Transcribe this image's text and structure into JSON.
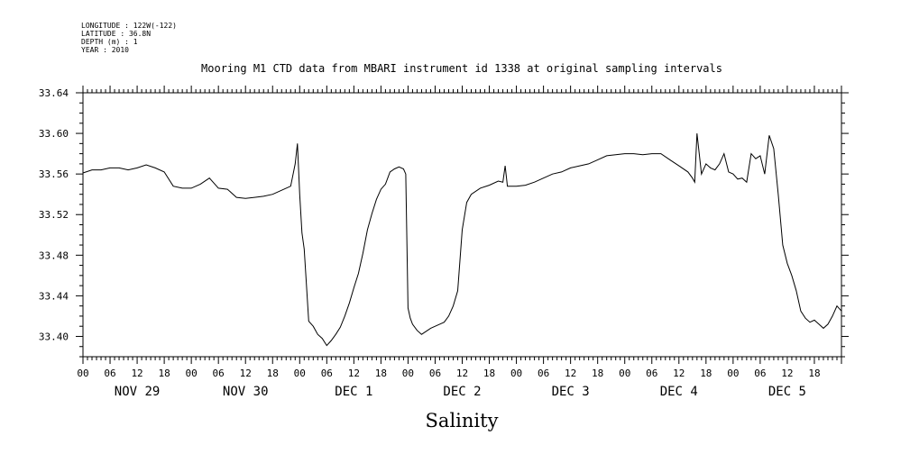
{
  "meta": {
    "longitude": "LONGITUDE : 122W(-122)",
    "latitude": "LATITUDE : 36.8N",
    "depth": "DEPTH (m) : 1",
    "year": "YEAR : 2010"
  },
  "chart_data": {
    "type": "line",
    "title": "Mooring M1 CTD data from MBARI instrument id 1338 at original sampling intervals",
    "xlabel": "Salinity",
    "ylabel": "",
    "xlim_hours": [
      0,
      168
    ],
    "ylim": [
      33.38,
      33.64
    ],
    "yticks": [
      33.4,
      33.44,
      33.48,
      33.52,
      33.56,
      33.6,
      33.64
    ],
    "ytick_labels": [
      "33.40",
      "33.44",
      "33.48",
      "33.52",
      "33.56",
      "33.60",
      "33.64"
    ],
    "xtick_hours": [
      "00",
      "06",
      "12",
      "18",
      "00",
      "06",
      "12",
      "18",
      "00",
      "06",
      "12",
      "18",
      "00",
      "06",
      "12",
      "18",
      "00",
      "06",
      "12",
      "18",
      "00",
      "06",
      "12",
      "18",
      "00",
      "06",
      "12",
      "18"
    ],
    "day_labels": [
      "NOV 29",
      "NOV 30",
      "DEC  1",
      "DEC  2",
      "DEC  3",
      "DEC  4",
      "DEC  5"
    ],
    "grid": false,
    "series": [
      {
        "x": [
          0,
          2,
          4,
          6,
          8,
          10,
          12,
          14,
          16,
          18,
          20,
          22,
          24,
          26,
          28,
          30,
          32,
          34,
          36,
          38,
          40,
          42,
          44,
          46,
          47,
          47.5,
          48,
          48.5,
          49,
          50,
          51,
          52,
          53,
          54,
          55,
          56,
          57,
          58,
          59,
          60,
          61,
          62,
          63,
          64,
          65,
          66,
          67,
          68,
          69,
          70,
          71,
          71.5,
          72,
          72.5,
          73,
          74,
          75,
          76,
          77,
          78,
          79,
          80,
          81,
          82,
          83,
          84,
          85,
          86,
          88,
          90,
          92,
          93,
          93.5,
          94,
          96,
          98,
          100,
          102,
          104,
          106,
          108,
          110,
          112,
          114,
          116,
          118,
          120,
          122,
          124,
          126,
          128,
          130,
          132,
          134,
          135,
          135.5,
          136,
          137,
          138,
          139,
          140,
          141,
          142,
          143,
          144,
          145,
          146,
          147,
          148,
          149,
          150,
          151,
          152,
          153,
          154,
          155,
          156,
          157,
          158,
          159,
          160,
          161,
          162,
          163,
          164,
          165,
          166,
          167,
          168
        ],
        "y": [
          33.561,
          33.564,
          33.564,
          33.566,
          33.566,
          33.564,
          33.566,
          33.569,
          33.566,
          33.562,
          33.548,
          33.546,
          33.546,
          33.55,
          33.556,
          33.546,
          33.545,
          33.537,
          33.536,
          33.537,
          33.538,
          33.54,
          33.544,
          33.548,
          33.57,
          33.59,
          33.54,
          33.502,
          33.486,
          33.415,
          33.41,
          33.402,
          33.398,
          33.391,
          33.396,
          33.402,
          33.409,
          33.42,
          33.433,
          33.448,
          33.462,
          33.482,
          33.505,
          33.521,
          33.535,
          33.545,
          33.55,
          33.562,
          33.565,
          33.567,
          33.565,
          33.56,
          33.428,
          33.418,
          33.412,
          33.406,
          33.402,
          33.405,
          33.408,
          33.41,
          33.412,
          33.414,
          33.42,
          33.43,
          33.445,
          33.505,
          33.532,
          33.54,
          33.546,
          33.549,
          33.553,
          33.552,
          33.568,
          33.548,
          33.548,
          33.549,
          33.552,
          33.556,
          33.56,
          33.562,
          33.566,
          33.568,
          33.57,
          33.574,
          33.578,
          33.579,
          33.58,
          33.58,
          33.579,
          33.58,
          33.58,
          33.574,
          33.568,
          33.562,
          33.556,
          33.552,
          33.6,
          33.56,
          33.57,
          33.566,
          33.564,
          33.57,
          33.58,
          33.562,
          33.56,
          33.555,
          33.556,
          33.552,
          33.58,
          33.575,
          33.578,
          33.56,
          33.598,
          33.585,
          33.54,
          33.49,
          33.472,
          33.46,
          33.445,
          33.425,
          33.418,
          33.414,
          33.416,
          33.412,
          33.408,
          33.412,
          33.42,
          33.43,
          33.425
        ]
      }
    ]
  }
}
